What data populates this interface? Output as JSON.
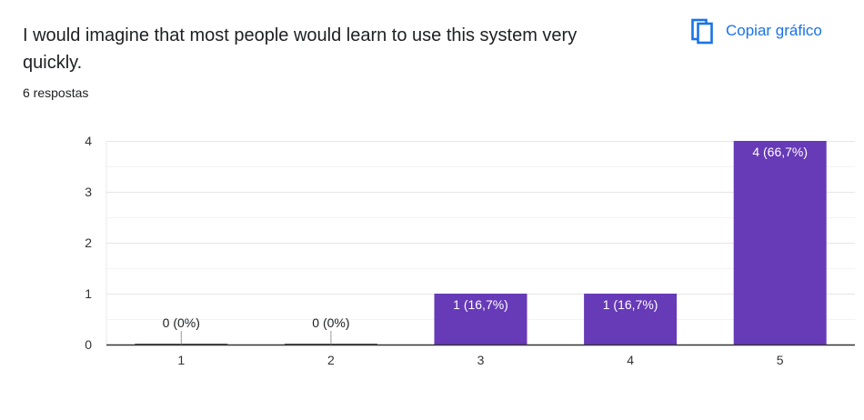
{
  "question": {
    "title": "I would imagine that most people would learn to use this system very quickly.",
    "responses": "6 respostas"
  },
  "actions": {
    "copy_label": "Copiar gráfico",
    "copy_icon": "copy-icon"
  },
  "colors": {
    "bar": "#673ab7",
    "accent": "#1a73e8"
  },
  "chart_data": {
    "type": "bar",
    "categories": [
      "1",
      "2",
      "3",
      "4",
      "5"
    ],
    "values": [
      0,
      0,
      1,
      1,
      4
    ],
    "data_labels": [
      "0 (0%)",
      "0 (0%)",
      "1 (16,7%)",
      "1 (16,7%)",
      "4 (66,7%)"
    ],
    "yticks": [
      "0",
      "1",
      "2",
      "3",
      "4"
    ],
    "ylim": [
      0,
      4
    ],
    "xlabel": "",
    "ylabel": "",
    "grid": true
  }
}
